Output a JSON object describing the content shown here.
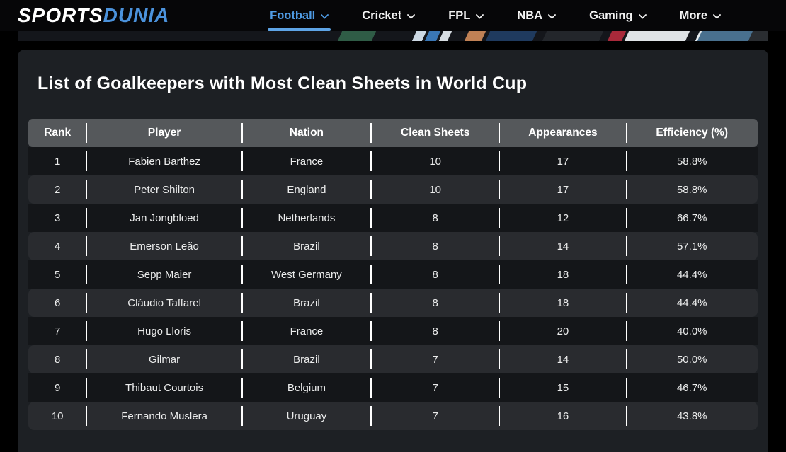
{
  "nav": {
    "logo": {
      "part1": "SPORTS",
      "part2": "DUNIA"
    },
    "items": [
      {
        "label": "Football",
        "active": true
      },
      {
        "label": "Cricket",
        "active": false
      },
      {
        "label": "FPL",
        "active": false
      },
      {
        "label": "NBA",
        "active": false
      },
      {
        "label": "Gaming",
        "active": false
      },
      {
        "label": "More",
        "active": false
      }
    ]
  },
  "page": {
    "title": "List of Goalkeepers with Most Clean Sheets in World Cup"
  },
  "table": {
    "headers": [
      "Rank",
      "Player",
      "Nation",
      "Clean Sheets",
      "Appearances",
      "Efficiency (%)"
    ],
    "rows": [
      [
        "1",
        "Fabien Barthez",
        "France",
        "10",
        "17",
        "58.8%"
      ],
      [
        "2",
        "Peter Shilton",
        "England",
        "10",
        "17",
        "58.8%"
      ],
      [
        "3",
        "Jan Jongbloed",
        "Netherlands",
        "8",
        "12",
        "66.7%"
      ],
      [
        "4",
        "Emerson Leão",
        "Brazil",
        "8",
        "14",
        "57.1%"
      ],
      [
        "5",
        "Sepp Maier",
        "West Germany",
        "8",
        "18",
        "44.4%"
      ],
      [
        "6",
        "Cláudio Taffarel",
        "Brazil",
        "8",
        "18",
        "44.4%"
      ],
      [
        "7",
        "Hugo Lloris",
        "France",
        "8",
        "20",
        "40.0%"
      ],
      [
        "8",
        "Gilmar",
        "Brazil",
        "7",
        "14",
        "50.0%"
      ],
      [
        "9",
        "Thibaut Courtois",
        "Belgium",
        "7",
        "15",
        "46.7%"
      ],
      [
        "10",
        "Fernando Muslera",
        "Uruguay",
        "7",
        "16",
        "43.8%"
      ]
    ]
  },
  "colors": {
    "accent_blue": "#4f9be4",
    "logo_blue": "#4b92dc",
    "underline_blue": "#5ea4e6",
    "card_bg": "#1d2024",
    "header_row_bg": "#55585b",
    "even_row_bg": "#292b2f",
    "odd_row_bg": "#141619",
    "separator": "#ffffff",
    "page_bg": "#000000"
  },
  "icons": {
    "chevron_down": "chevron-down-icon"
  }
}
